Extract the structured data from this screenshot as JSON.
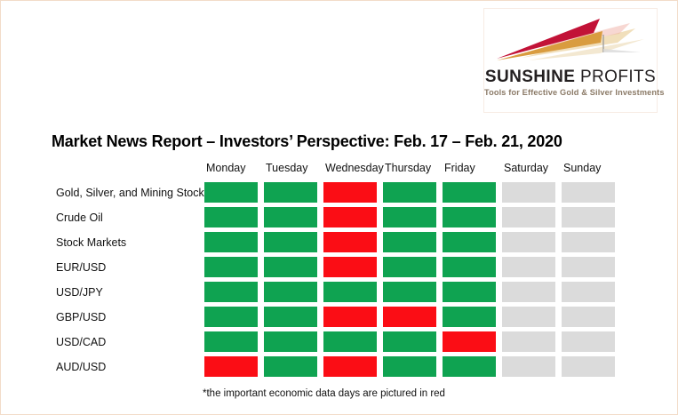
{
  "logo": {
    "brand_primary": "SUNSHINE",
    "brand_secondary": "PROFITS",
    "tagline": "Tools for Effective Gold & Silver Investments"
  },
  "page": {
    "title": "Market News Report – Investors’ Perspective: Feb. 17 – Feb. 21, 2020",
    "footnote": "*the important economic data days are pictured in red"
  },
  "colors": {
    "bullish_green": "#0FA351",
    "important_red": "#FB0D15",
    "weekend_gray": "#DBDBDB",
    "logo_crimson": "#C21237",
    "logo_gold": "#D99C3F",
    "tagline_brown": "#8B7A67",
    "page_border": "#F2DCC9"
  },
  "chart_data": {
    "type": "heatmap",
    "title": "Market News Report – Investors’ Perspective: Feb. 17 – Feb. 21, 2020",
    "columns": [
      "Monday",
      "Tuesday",
      "Wednesday",
      "Thursday",
      "Friday",
      "Saturday",
      "Sunday"
    ],
    "rows": [
      {
        "label": "Gold, Silver, and Mining Stocks",
        "cells": [
          "green",
          "green",
          "red",
          "green",
          "green",
          "off",
          "off"
        ]
      },
      {
        "label": "Crude Oil",
        "cells": [
          "green",
          "green",
          "red",
          "green",
          "green",
          "off",
          "off"
        ]
      },
      {
        "label": "Stock Markets",
        "cells": [
          "green",
          "green",
          "red",
          "green",
          "green",
          "off",
          "off"
        ]
      },
      {
        "label": "EUR/USD",
        "cells": [
          "green",
          "green",
          "red",
          "green",
          "green",
          "off",
          "off"
        ]
      },
      {
        "label": "USD/JPY",
        "cells": [
          "green",
          "green",
          "green",
          "green",
          "green",
          "off",
          "off"
        ]
      },
      {
        "label": "GBP/USD",
        "cells": [
          "green",
          "green",
          "red",
          "red",
          "green",
          "off",
          "off"
        ]
      },
      {
        "label": "USD/CAD",
        "cells": [
          "green",
          "green",
          "green",
          "green",
          "red",
          "off",
          "off"
        ]
      },
      {
        "label": "AUD/USD",
        "cells": [
          "red",
          "green",
          "red",
          "green",
          "green",
          "off",
          "off"
        ]
      }
    ],
    "cell_state_legend": {
      "red": "important economic data day (per footnote)"
    },
    "footnote": "*the important economic data days are pictured in red",
    "layout": {
      "grid_on": false,
      "weekend_columns_inactive": [
        "Saturday",
        "Sunday"
      ]
    }
  }
}
